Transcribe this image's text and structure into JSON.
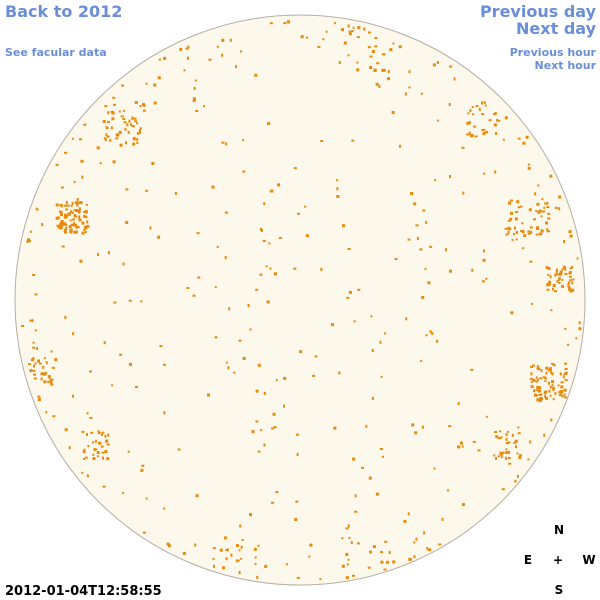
{
  "links": {
    "back": "Back to 2012",
    "see_facular": "See facular data",
    "previous_day": "Previous day",
    "next_day": "Next day",
    "previous_hour": "Previous hour",
    "next_hour": "Next hour"
  },
  "timestamp": "2012-01-04T12:58:55",
  "compass": {
    "north": "N",
    "east": "E",
    "center": "+",
    "west": "W",
    "south": "S"
  }
}
